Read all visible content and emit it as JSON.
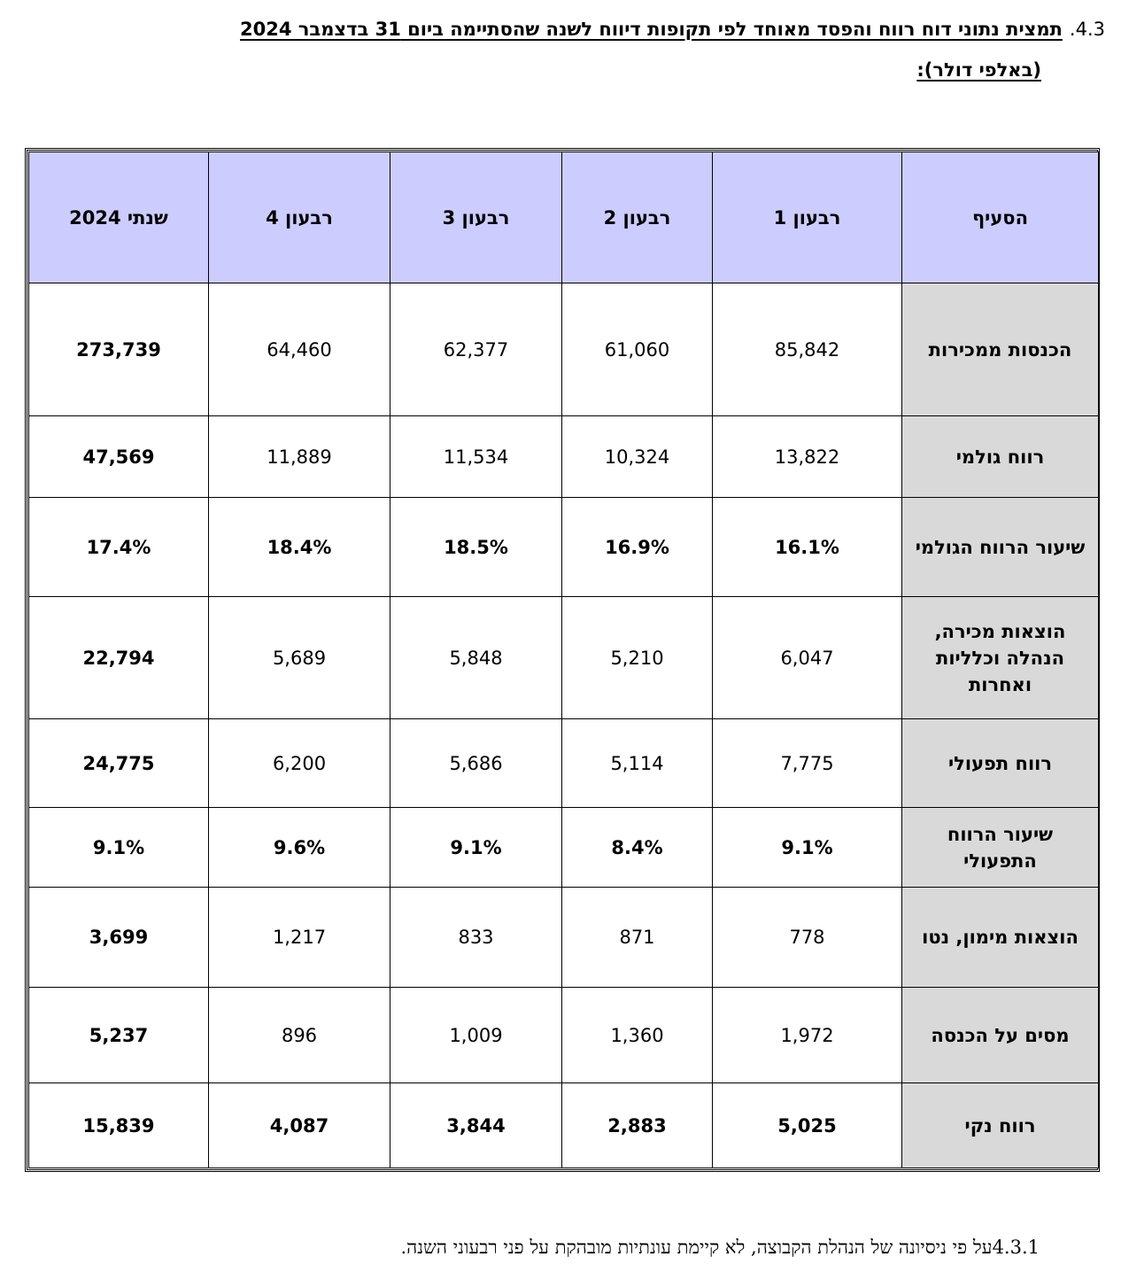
{
  "heading": {
    "number": "4.3.",
    "title_line1": "תמצית נתוני דוח רווח והפסד מאוחד לפי תקופות דיווח לשנה שהסתיימה ביום 31 בדצמבר 2024",
    "title_line2": "(באלפי דולר):"
  },
  "table": {
    "headers": [
      "הסעיף",
      "רבעון 1",
      "רבעון 2",
      "רבעון 3",
      "רבעון 4",
      "שנתי 2024"
    ],
    "rows": [
      {
        "label": "הכנסות ממכירות",
        "q1": "85,842",
        "q2": "61,060",
        "q3": "62,377",
        "q4": "64,460",
        "annual": "273,739"
      },
      {
        "label": "רווח גולמי",
        "q1": "13,822",
        "q2": "10,324",
        "q3": "11,534",
        "q4": "11,889",
        "annual": "47,569"
      },
      {
        "label": "שיעור הרווח הגולמי",
        "q1": "16.1%",
        "q2": "16.9%",
        "q3": "18.5%",
        "q4": "18.4%",
        "annual": "17.4%"
      },
      {
        "label": "הוצאות מכירה, הנהלה וכלליות ואחרות",
        "q1": "6,047",
        "q2": "5,210",
        "q3": "5,848",
        "q4": "5,689",
        "annual": "22,794"
      },
      {
        "label": "רווח תפעולי",
        "q1": "7,775",
        "q2": "5,114",
        "q3": "5,686",
        "q4": "6,200",
        "annual": "24,775"
      },
      {
        "label": "שיעור הרווח התפעולי",
        "q1": "9.1%",
        "q2": "8.4%",
        "q3": "9.1%",
        "q4": "9.6%",
        "annual": "9.1%"
      },
      {
        "label": "הוצאות מימון, נטו",
        "q1": "778",
        "q2": "871",
        "q3": "833",
        "q4": "1,217",
        "annual": "3,699"
      },
      {
        "label": "מסים על הכנסה",
        "q1": "1,972",
        "q2": "1,360",
        "q3": "1,009",
        "q4": "896",
        "annual": "5,237"
      },
      {
        "label": "רווח נקי",
        "q1": "5,025",
        "q2": "2,883",
        "q3": "3,844",
        "q4": "4,087",
        "annual": "15,839"
      }
    ]
  },
  "footnote": "4.3.1על פי ניסיונה של הנהלת הקבוצה, לא קיימת עונתיות מובהקת על פני רבעוני השנה."
}
